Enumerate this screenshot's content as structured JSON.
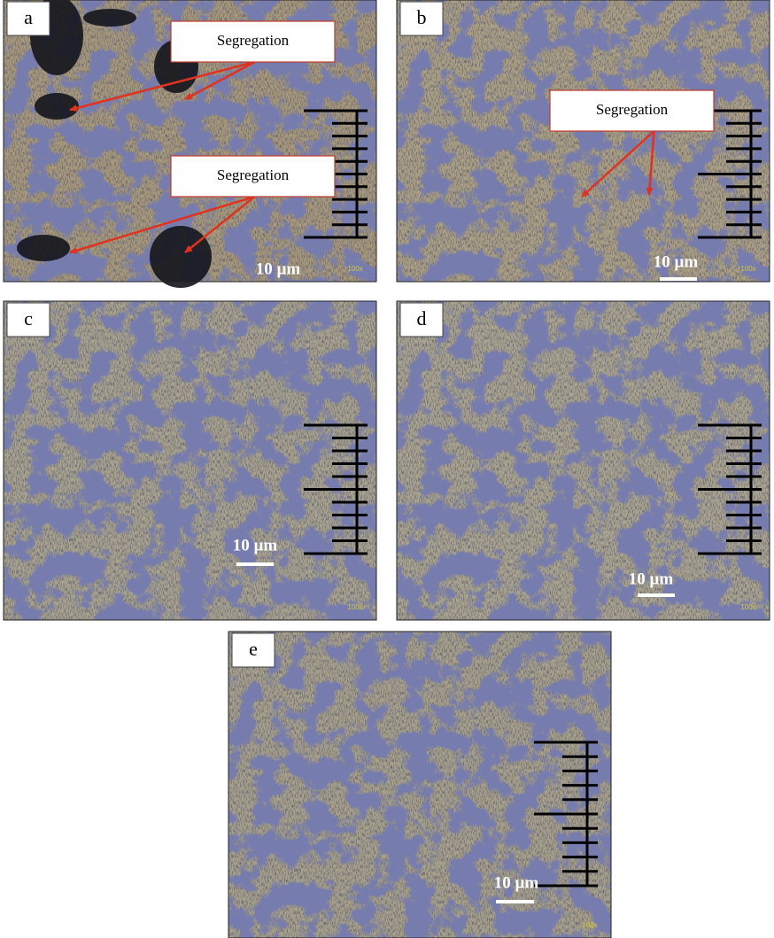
{
  "panels": [
    {
      "label": "a",
      "annotations": [
        "Segregation",
        "Segregation"
      ],
      "scale_bar": "10 µm",
      "magnification": "100x"
    },
    {
      "label": "b",
      "annotations": [
        "Segregation"
      ],
      "scale_bar": "10 µm",
      "magnification": "100x"
    },
    {
      "label": "c",
      "annotations": [],
      "scale_bar": "10 µm",
      "magnification": "100x"
    },
    {
      "label": "d",
      "annotations": [],
      "scale_bar": "10 µm",
      "magnification": "100x"
    },
    {
      "label": "e",
      "annotations": [],
      "scale_bar": "10 µm",
      "magnification": "100x"
    }
  ]
}
